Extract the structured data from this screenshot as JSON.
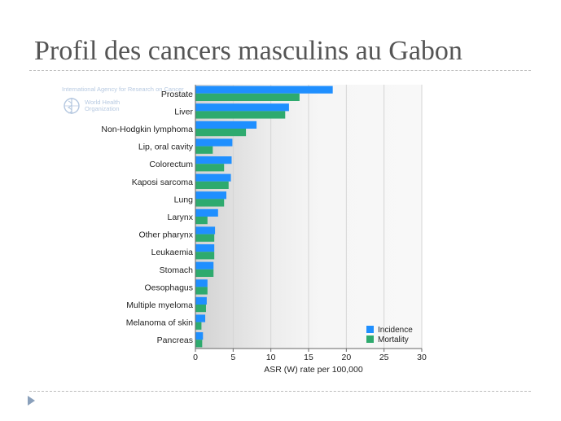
{
  "slide": {
    "title": "Profil des cancers masculins au Gabon"
  },
  "logo": {
    "iarc_text": "International Agency for Research on Cancer",
    "who_line1": "World Health",
    "who_line2": "Organization"
  },
  "chart_data": {
    "type": "bar",
    "orientation": "horizontal",
    "categories": [
      "Prostate",
      "Liver",
      "Non-Hodgkin lymphoma",
      "Lip, oral cavity",
      "Colorectum",
      "Kaposi sarcoma",
      "Lung",
      "Larynx",
      "Other pharynx",
      "Leukaemia",
      "Stomach",
      "Oesophagus",
      "Multiple myeloma",
      "Melanoma of skin",
      "Pancreas"
    ],
    "series": [
      {
        "name": "Incidence",
        "color": "#1f8fff",
        "values": [
          18.2,
          12.4,
          8.1,
          4.9,
          4.8,
          4.7,
          4.1,
          3.0,
          2.6,
          2.5,
          2.4,
          1.6,
          1.5,
          1.3,
          1.0
        ]
      },
      {
        "name": "Mortality",
        "color": "#2eaa6e",
        "values": [
          13.8,
          11.9,
          6.7,
          2.3,
          3.8,
          4.4,
          3.8,
          1.6,
          2.5,
          2.5,
          2.4,
          1.6,
          1.4,
          0.8,
          0.9
        ]
      }
    ],
    "xlabel": "ASR (W) rate per 100,000",
    "xlim": [
      0,
      30
    ],
    "xticks": [
      0,
      5,
      10,
      15,
      20,
      25,
      30
    ],
    "grid": true,
    "legend_position": "bottom-right"
  }
}
